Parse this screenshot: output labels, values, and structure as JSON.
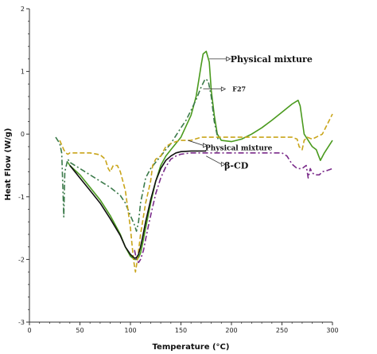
{
  "chart_data": {
    "type": "line",
    "xlabel": "Temperature (°C)",
    "ylabel": "Heat Flow (W/g)",
    "xlim": [
      0,
      300
    ],
    "ylim": [
      -3,
      2
    ],
    "xticks": [
      "0",
      "50",
      "100",
      "150",
      "200",
      "250",
      "300"
    ],
    "yticks": [
      "-3",
      "-2",
      "-1",
      "0",
      "1",
      "2"
    ],
    "grid": false,
    "legend": "none",
    "annotations": [
      {
        "text": "Physical mixture",
        "series": 0
      },
      {
        "text": "F27",
        "series": 1
      },
      {
        "text": "Physical mixture",
        "series": 2
      },
      {
        "text": "β-CD",
        "series": 3
      }
    ],
    "series": [
      {
        "color": "#4a9a1e",
        "style": "solid",
        "x": [
          38,
          40,
          50,
          60,
          70,
          80,
          90,
          95,
          100,
          104,
          106,
          108,
          110,
          112,
          115,
          120,
          125,
          130,
          135,
          140,
          150,
          160,
          165,
          168,
          170,
          172,
          175,
          178,
          180,
          183,
          186,
          190,
          200,
          210,
          220,
          230,
          240,
          250,
          260,
          266,
          268,
          272,
          280,
          284,
          288,
          292,
          296,
          300
        ],
        "y": [
          -0.45,
          -0.5,
          -0.65,
          -0.85,
          -1.05,
          -1.3,
          -1.6,
          -1.8,
          -1.95,
          -2.0,
          -2.0,
          -1.97,
          -1.9,
          -1.75,
          -1.5,
          -1.1,
          -0.75,
          -0.5,
          -0.35,
          -0.25,
          -0.05,
          0.3,
          0.6,
          0.9,
          1.1,
          1.28,
          1.32,
          1.15,
          0.7,
          0.3,
          0.0,
          -0.1,
          -0.12,
          -0.08,
          0.0,
          0.1,
          0.22,
          0.35,
          0.48,
          0.54,
          0.45,
          0.0,
          -0.2,
          -0.25,
          -0.42,
          -0.3,
          -0.2,
          -0.1
        ]
      },
      {
        "color": "#3b7a4a",
        "style": "dashdot",
        "x": [
          26,
          30,
          32,
          33,
          34,
          35,
          38,
          40,
          50,
          60,
          70,
          80,
          90,
          95,
          100,
          104,
          106,
          108,
          110,
          115,
          120,
          130,
          140,
          150,
          155,
          160,
          165,
          170,
          174,
          177,
          180,
          183,
          187
        ],
        "y": [
          -0.05,
          -0.15,
          -0.3,
          -0.8,
          -1.32,
          -0.6,
          -0.4,
          -0.45,
          -0.55,
          -0.65,
          -0.75,
          -0.85,
          -0.98,
          -1.1,
          -1.3,
          -1.45,
          -1.55,
          -1.4,
          -1.1,
          -0.7,
          -0.55,
          -0.35,
          -0.15,
          0.1,
          0.22,
          0.38,
          0.55,
          0.75,
          0.88,
          0.85,
          0.6,
          0.2,
          -0.1
        ]
      },
      {
        "color": "#c9a51a",
        "style": "dashed",
        "x": [
          30,
          34,
          36,
          38,
          40,
          50,
          60,
          70,
          75,
          78,
          80,
          83,
          87,
          90,
          95,
          100,
          103,
          105,
          107,
          110,
          115,
          120,
          122,
          125,
          130,
          135,
          140,
          145,
          150,
          160,
          170,
          180,
          190,
          200,
          210,
          220,
          230,
          240,
          250,
          260,
          265,
          267,
          270,
          272,
          275,
          280,
          290,
          300
        ],
        "y": [
          -0.1,
          -0.25,
          -0.3,
          -0.32,
          -0.3,
          -0.3,
          -0.3,
          -0.33,
          -0.4,
          -0.55,
          -0.6,
          -0.5,
          -0.5,
          -0.6,
          -0.9,
          -1.5,
          -2.0,
          -2.2,
          -2.0,
          -1.6,
          -1.1,
          -0.75,
          -0.5,
          -0.4,
          -0.35,
          -0.2,
          -0.15,
          -0.12,
          -0.1,
          -0.1,
          -0.05,
          -0.05,
          -0.05,
          -0.05,
          -0.05,
          -0.05,
          -0.05,
          -0.05,
          -0.05,
          -0.05,
          -0.08,
          -0.2,
          -0.25,
          -0.1,
          -0.05,
          -0.08,
          0.0,
          0.32
        ]
      },
      {
        "color": "#7a2b8a",
        "style": "dashdot",
        "x": [
          104,
          106,
          108,
          110,
          113,
          116,
          120,
          125,
          130,
          135,
          140,
          145,
          150,
          160,
          170,
          180,
          190,
          200,
          210,
          220,
          230,
          240,
          250,
          255,
          260,
          265,
          270,
          274,
          276,
          278,
          280,
          283,
          287,
          290,
          295,
          300
        ],
        "y": [
          -1.85,
          -2.0,
          -2.05,
          -2.0,
          -1.85,
          -1.6,
          -1.3,
          -0.95,
          -0.7,
          -0.52,
          -0.4,
          -0.35,
          -0.32,
          -0.3,
          -0.3,
          -0.3,
          -0.3,
          -0.3,
          -0.3,
          -0.3,
          -0.3,
          -0.3,
          -0.3,
          -0.35,
          -0.48,
          -0.55,
          -0.55,
          -0.5,
          -0.7,
          -0.55,
          -0.62,
          -0.65,
          -0.65,
          -0.6,
          -0.58,
          -0.55
        ]
      },
      {
        "color": "#111111",
        "style": "solid",
        "x": [
          40,
          50,
          60,
          70,
          80,
          90,
          95,
          100,
          104,
          106,
          108,
          110,
          112,
          115,
          120,
          125,
          130,
          135,
          140,
          145,
          150,
          160,
          170,
          175
        ],
        "y": [
          -0.5,
          -0.7,
          -0.9,
          -1.1,
          -1.35,
          -1.62,
          -1.8,
          -1.92,
          -1.98,
          -1.97,
          -1.92,
          -1.8,
          -1.65,
          -1.4,
          -1.05,
          -0.75,
          -0.55,
          -0.42,
          -0.35,
          -0.3,
          -0.28,
          -0.27,
          -0.27,
          -0.27
        ]
      }
    ]
  }
}
